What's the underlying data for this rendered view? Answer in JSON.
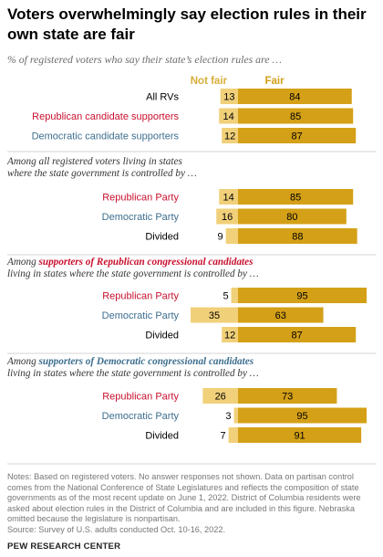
{
  "title": "Voters overwhelmingly say election rules in their own state are fair",
  "subtitle": "% of registered voters who say their state’s election rules are …",
  "notes": "Notes: Based on registered voters. No answer responses not shown. Data on partisan control comes from the National Conference of State Legislatures and reflects the composition of state governments as of the most recent update on June 1, 2022. District of Columbia residents were asked about election rules in the District of Columbia and are included in this figure. Nebraska omitted because the legislature is nonpartisan.",
  "source": "Source: Survey of U.S. adults conducted Oct. 10-16, 2022.",
  "org": "PEW RESEARCH CENTER",
  "colors": {
    "not_fair": "#f1d07a",
    "fair": "#d4a017",
    "not_fair_label": "#d9ad3a",
    "republican": "#c8102e",
    "democratic": "#3d6e8f",
    "default": "#000000"
  },
  "chart_data": {
    "type": "bar",
    "orientation": "horizontal",
    "stacked": "diverging",
    "series": [
      {
        "name": "Not fair"
      },
      {
        "name": "Fair"
      }
    ],
    "groups": [
      {
        "heading_parts": [],
        "heading_line2": "",
        "rows": [
          {
            "label": "All RVs",
            "party": "default",
            "not_fair": 13,
            "fair": 84
          },
          {
            "label": "Republican candidate supporters",
            "party": "republican",
            "not_fair": 14,
            "fair": 85
          },
          {
            "label": "Democratic candidate supporters",
            "party": "democratic",
            "not_fair": 12,
            "fair": 87
          }
        ]
      },
      {
        "heading_parts": [
          {
            "text": "Among all registered voters living in states",
            "style": "plain"
          }
        ],
        "heading_line2": "where the state government is controlled by …",
        "rows": [
          {
            "label": "Republican Party",
            "party": "republican",
            "not_fair": 14,
            "fair": 85
          },
          {
            "label": "Democratic Party",
            "party": "democratic",
            "not_fair": 16,
            "fair": 80
          },
          {
            "label": "Divided",
            "party": "default",
            "not_fair": 9,
            "fair": 88
          }
        ]
      },
      {
        "heading_parts": [
          {
            "text": "Among ",
            "style": "plain"
          },
          {
            "text": "supporters of Republican congressional candidates",
            "style": "republican"
          }
        ],
        "heading_line2": "living in states where the state government is controlled by …",
        "rows": [
          {
            "label": "Republican Party",
            "party": "republican",
            "not_fair": 5,
            "fair": 95
          },
          {
            "label": "Democratic Party",
            "party": "democratic",
            "not_fair": 35,
            "fair": 63
          },
          {
            "label": "Divided",
            "party": "default",
            "not_fair": 12,
            "fair": 87
          }
        ]
      },
      {
        "heading_parts": [
          {
            "text": "Among ",
            "style": "plain"
          },
          {
            "text": "supporters of Democratic congressional candidates",
            "style": "democratic"
          }
        ],
        "heading_line2": "living in states where the state government is controlled by …",
        "rows": [
          {
            "label": "Republican Party",
            "party": "republican",
            "not_fair": 26,
            "fair": 73
          },
          {
            "label": "Democratic Party",
            "party": "democratic",
            "not_fair": 3,
            "fair": 95
          },
          {
            "label": "Divided",
            "party": "default",
            "not_fair": 7,
            "fair": 91
          }
        ]
      }
    ]
  }
}
